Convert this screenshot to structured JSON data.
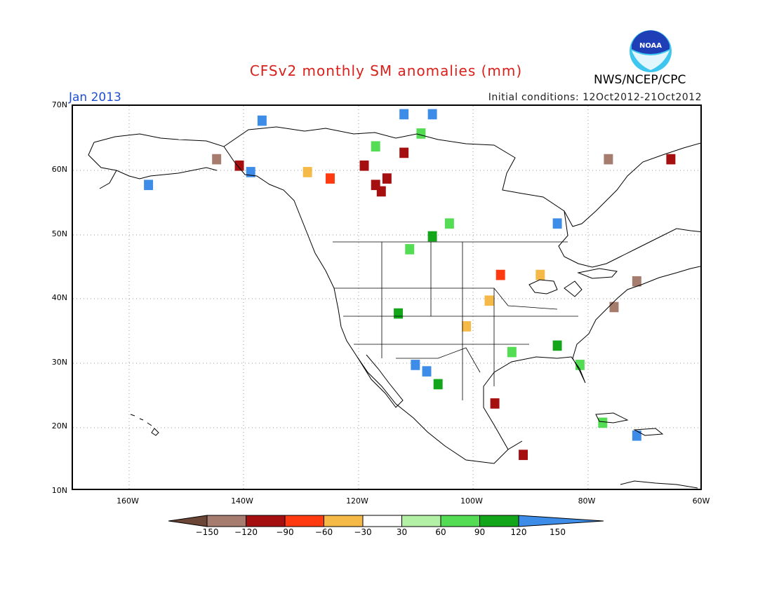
{
  "header": {
    "title": "CFSv2 monthly SM anomalies (mm)",
    "month": "Jan 2013",
    "initial_conditions": "Initial conditions: 12Oct2012-21Oct2012",
    "organization": "NWS/NCEP/CPC",
    "logo_text": "NOAA"
  },
  "map": {
    "projection": "lat-lon",
    "lon_range": [
      -171,
      -60
    ],
    "lat_range": [
      10,
      70
    ],
    "lat_labels": [
      "70N",
      "60N",
      "50N",
      "40N",
      "30N",
      "20N",
      "10N"
    ],
    "lon_labels": [
      "160W",
      "140W",
      "120W",
      "100W",
      "80W",
      "60W"
    ],
    "gridlines": "dotted"
  },
  "legend": {
    "labels": [
      "-150",
      "-120",
      "-90",
      "-60",
      "-30",
      "30",
      "60",
      "90",
      "120",
      "150"
    ],
    "colors": [
      "#6b4536",
      "#a67c6f",
      "#a50f0f",
      "#ff3a10",
      "#f5b947",
      "#ffffff",
      "#b2f0a6",
      "#55dc55",
      "#13a61a",
      "#3c8ce8"
    ]
  },
  "anomaly_cells": [
    {
      "lon": -117,
      "lat": 57,
      "v": -110
    },
    {
      "lon": -118,
      "lat": 58,
      "v": -110
    },
    {
      "lon": -116,
      "lat": 59,
      "v": -100
    },
    {
      "lon": -120,
      "lat": 61,
      "v": -90
    },
    {
      "lon": -126,
      "lat": 59,
      "v": -70
    },
    {
      "lon": -130,
      "lat": 60,
      "v": -50
    },
    {
      "lon": -113,
      "lat": 63,
      "v": -90
    },
    {
      "lon": -146,
      "lat": 62,
      "v": -120
    },
    {
      "lon": -142,
      "lat": 61,
      "v": -100
    },
    {
      "lon": -138,
      "lat": 68,
      "v": 120
    },
    {
      "lon": -113,
      "lat": 69,
      "v": 140
    },
    {
      "lon": -108,
      "lat": 69,
      "v": 130
    },
    {
      "lon": -118,
      "lat": 64,
      "v": 70
    },
    {
      "lon": -110,
      "lat": 66,
      "v": 80
    },
    {
      "lon": -105,
      "lat": 52,
      "v": 70
    },
    {
      "lon": -108,
      "lat": 50,
      "v": 90
    },
    {
      "lon": -112,
      "lat": 48,
      "v": 80
    },
    {
      "lon": -114,
      "lat": 38,
      "v": 90
    },
    {
      "lon": -111,
      "lat": 30,
      "v": 140
    },
    {
      "lon": -109,
      "lat": 29,
      "v": 130
    },
    {
      "lon": -107,
      "lat": 27,
      "v": 110
    },
    {
      "lon": -102,
      "lat": 36,
      "v": -50
    },
    {
      "lon": -98,
      "lat": 40,
      "v": -40
    },
    {
      "lon": -96,
      "lat": 44,
      "v": -60
    },
    {
      "lon": -89,
      "lat": 44,
      "v": -50
    },
    {
      "lon": -94,
      "lat": 32,
      "v": 60
    },
    {
      "lon": -86,
      "lat": 33,
      "v": 100
    },
    {
      "lon": -82,
      "lat": 30,
      "v": 80
    },
    {
      "lon": -76,
      "lat": 39,
      "v": -140
    },
    {
      "lon": -72,
      "lat": 43,
      "v": -130
    },
    {
      "lon": -77,
      "lat": 62,
      "v": -120
    },
    {
      "lon": -66,
      "lat": 62,
      "v": -90
    },
    {
      "lon": -97,
      "lat": 24,
      "v": -90
    },
    {
      "lon": -92,
      "lat": 16,
      "v": -110
    },
    {
      "lon": -158,
      "lat": 58,
      "v": 140
    },
    {
      "lon": -140,
      "lat": 60,
      "v": 130
    },
    {
      "lon": -78,
      "lat": 21,
      "v": 80
    },
    {
      "lon": -72,
      "lat": 19,
      "v": 130
    },
    {
      "lon": -86,
      "lat": 52,
      "v": 140
    }
  ]
}
